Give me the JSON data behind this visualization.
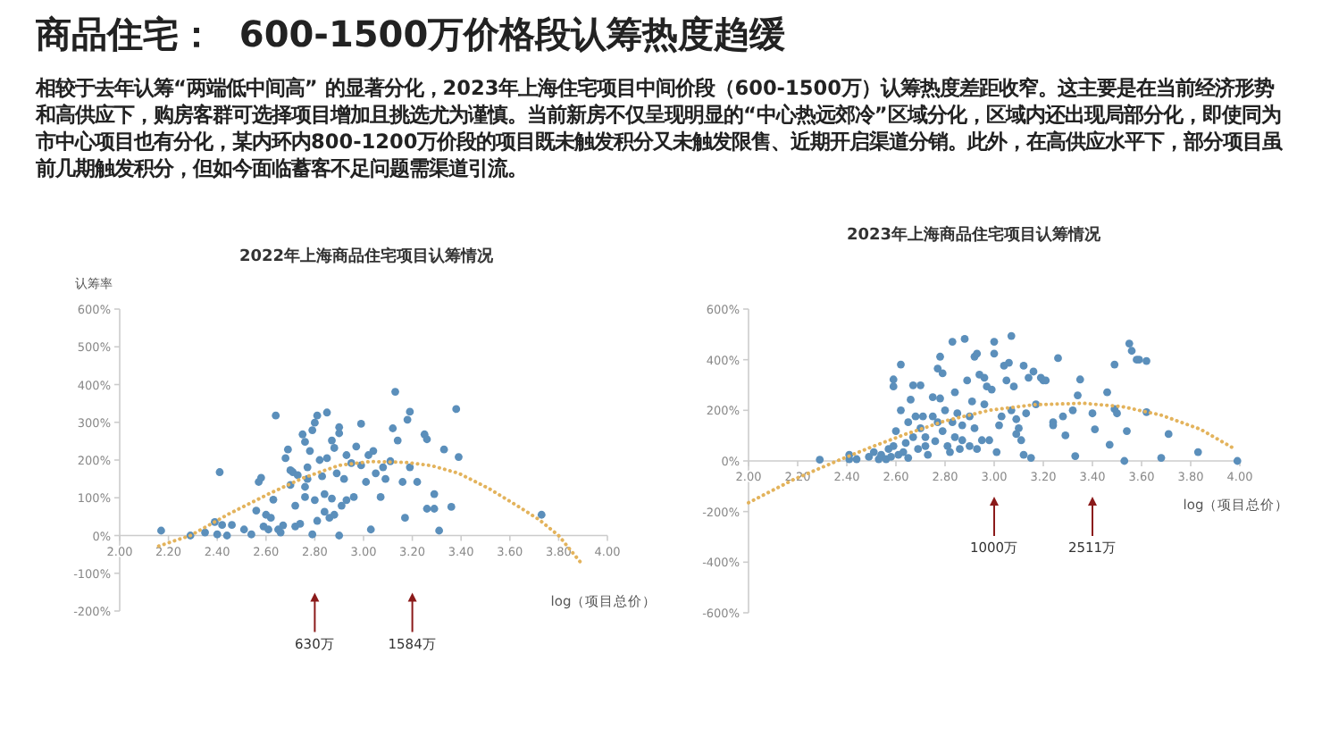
{
  "chart_data": [
    {
      "type": "other",
      "title": "商品住宅：  600-1500万价格段认筹热度趋缓",
      "subtitle": "相较于去年认筹“两端低中间高” 的显著分化，2023年上海住宅项目中间价段（600-1500万）认筹热度差距收窄。这主要是在当前经济形势和高供应下，购房客群可选择项目增加且挑选尤为谨慎。当前新房不仅呈现明显的“中心热远郊冷”区域分化，区域内还出现局部分化，即使同为市中心项目也有分化，某内环内800-1200万价段的项目既未触发积分又未触发限售、近期开启渠道分销。此外，在高供应水平下，部分项目虽前几期触发积分，但如今面临蓄客不足问题需渠道引流。"
    },
    {
      "type": "scatter",
      "title": "2022年上海商品住宅项目认筹情况",
      "ylabel": "认筹率",
      "xlabel": "log（项目总价）",
      "xlim": [
        2,
        4
      ],
      "xticks": [
        {
          "value": 2,
          "label": "2.00"
        },
        {
          "value": 2.2,
          "label": "2.20"
        },
        {
          "value": 2.4,
          "label": "2.40"
        },
        {
          "value": 2.6,
          "label": "2.60"
        },
        {
          "value": 2.8,
          "label": "2.80"
        },
        {
          "value": 3,
          "label": "3.00"
        },
        {
          "value": 3.2,
          "label": "3.20"
        },
        {
          "value": 3.4,
          "label": "3.40"
        },
        {
          "value": 3.6,
          "label": "3.60"
        },
        {
          "value": 3.8,
          "label": "3.80"
        },
        {
          "value": 4,
          "label": "4.00"
        }
      ],
      "ylim": [
        -200,
        600
      ],
      "yticks": [
        {
          "value": -200,
          "label": "-200%"
        },
        {
          "value": -100,
          "label": "-100%"
        },
        {
          "value": 0,
          "label": "0%"
        },
        {
          "value": 100,
          "label": "100%"
        },
        {
          "value": 200,
          "label": "200%"
        },
        {
          "value": 300,
          "label": "300%"
        },
        {
          "value": 400,
          "label": "400%"
        },
        {
          "value": 500,
          "label": "500%"
        },
        {
          "value": 600,
          "label": "600%"
        }
      ],
      "ref_lines": [
        {
          "axis": "x",
          "value": 2.8,
          "label": "630万",
          "color": "#8b1a1a"
        },
        {
          "axis": "x",
          "value": 3.2,
          "label": "1584万",
          "color": "#8b1a1a"
        }
      ],
      "series": [
        {
          "type": "scatter",
          "color": "#5b8fbb",
          "marker": "circle",
          "x": [
            2.17,
            2.29,
            2.35,
            2.39,
            2.41,
            2.4,
            2.42,
            2.44,
            2.46,
            2.51,
            2.54,
            2.56,
            2.57,
            2.58,
            2.59,
            2.6,
            2.61,
            2.62,
            2.63,
            2.64,
            2.65,
            2.66,
            2.67,
            2.68,
            2.69,
            2.7,
            2.7,
            2.71,
            2.72,
            2.72,
            2.73,
            2.74,
            2.75,
            2.76,
            2.76,
            2.76,
            2.77,
            2.77,
            2.78,
            2.79,
            2.79,
            2.8,
            2.8,
            2.81,
            2.81,
            2.82,
            2.83,
            2.84,
            2.84,
            2.85,
            2.85,
            2.86,
            2.87,
            2.87,
            2.88,
            2.88,
            2.89,
            2.9,
            2.9,
            2.91,
            2.9,
            2.92,
            2.93,
            2.93,
            2.95,
            2.96,
            2.97,
            2.99,
            2.99,
            3.01,
            3.02,
            3.03,
            3.04,
            3.05,
            3.07,
            3.08,
            3.09,
            3.11,
            3.12,
            3.13,
            3.14,
            3.16,
            3.17,
            3.18,
            3.19,
            3.19,
            3.22,
            3.25,
            3.26,
            3.26,
            3.29,
            3.29,
            3.31,
            3.33,
            3.36,
            3.38,
            3.39,
            3.73
          ],
          "values": [
            13,
            0,
            8,
            36,
            168,
            3,
            28,
            0,
            28,
            16,
            3,
            66,
            142,
            153,
            24,
            55,
            16,
            47,
            95,
            318,
            16,
            8,
            27,
            205,
            228,
            134,
            173,
            168,
            24,
            79,
            160,
            31,
            268,
            102,
            129,
            248,
            150,
            181,
            224,
            279,
            3,
            299,
            94,
            39,
            318,
            200,
            157,
            63,
            110,
            326,
            205,
            47,
            252,
            98,
            55,
            232,
            165,
            271,
            287,
            79,
            0,
            150,
            213,
            94,
            192,
            102,
            236,
            296,
            186,
            142,
            213,
            16,
            224,
            165,
            102,
            181,
            150,
            197,
            284,
            381,
            252,
            142,
            47,
            307,
            328,
            181,
            142,
            268,
            255,
            71,
            110,
            71,
            13,
            228,
            76,
            335,
            208,
            55
          ]
        },
        {
          "type": "line",
          "color": "#e3b35c",
          "line_style": "dotted",
          "marker": "none",
          "x": [
            2.16,
            2.29,
            2.45,
            2.61,
            2.75,
            2.9,
            3.03,
            3.17,
            3.28,
            3.39,
            3.51,
            3.63,
            3.72,
            3.8,
            3.89
          ],
          "values": [
            -28,
            0,
            58,
            110,
            152,
            186,
            196,
            194,
            185,
            165,
            126,
            79,
            42,
            0,
            -71
          ]
        }
      ]
    },
    {
      "type": "scatter",
      "title": "2023年上海商品住宅项目认筹情况",
      "xlabel": "log（项目总价）",
      "xlim": [
        2,
        4
      ],
      "xticks": [
        {
          "value": 2,
          "label": "2.00"
        },
        {
          "value": 2.2,
          "label": "2.20"
        },
        {
          "value": 2.4,
          "label": "2.40"
        },
        {
          "value": 2.6,
          "label": "2.60"
        },
        {
          "value": 2.8,
          "label": "2.80"
        },
        {
          "value": 3,
          "label": "3.00"
        },
        {
          "value": 3.2,
          "label": "3.20"
        },
        {
          "value": 3.4,
          "label": "3.40"
        },
        {
          "value": 3.6,
          "label": "3.60"
        },
        {
          "value": 3.8,
          "label": "3.80"
        },
        {
          "value": 4,
          "label": "4.00"
        }
      ],
      "ylim": [
        -600,
        600
      ],
      "yticks": [
        {
          "value": -600,
          "label": "-600%"
        },
        {
          "value": -400,
          "label": "-400%"
        },
        {
          "value": -200,
          "label": "-200%"
        },
        {
          "value": 0,
          "label": "0%"
        },
        {
          "value": 200,
          "label": "200%"
        },
        {
          "value": 400,
          "label": "400%"
        },
        {
          "value": 600,
          "label": "600%"
        }
      ],
      "ref_lines": [
        {
          "axis": "x",
          "value": 3,
          "label": "1000万",
          "color": "#8b1a1a"
        },
        {
          "axis": "x",
          "value": 3.4,
          "label": "2511万",
          "color": "#8b1a1a"
        }
      ],
      "series": [
        {
          "type": "scatter",
          "color": "#5b8fbb",
          "marker": "circle",
          "x": [
            2.29,
            2.41,
            2.41,
            2.44,
            2.49,
            2.51,
            2.53,
            2.54,
            2.56,
            2.57,
            2.58,
            2.59,
            2.59,
            2.59,
            2.6,
            2.61,
            2.62,
            2.62,
            2.63,
            2.64,
            2.65,
            2.65,
            2.66,
            2.67,
            2.67,
            2.68,
            2.69,
            2.7,
            2.7,
            2.71,
            2.72,
            2.72,
            2.73,
            2.75,
            2.75,
            2.76,
            2.77,
            2.77,
            2.78,
            2.78,
            2.79,
            2.79,
            2.8,
            2.81,
            2.82,
            2.83,
            2.83,
            2.84,
            2.84,
            2.85,
            2.86,
            2.87,
            2.87,
            2.88,
            2.89,
            2.9,
            2.9,
            2.91,
            2.92,
            2.92,
            2.93,
            2.93,
            2.94,
            2.95,
            2.96,
            2.96,
            2.97,
            2.98,
            2.99,
            3,
            3,
            3.01,
            3.02,
            3.03,
            3.04,
            3.05,
            3.06,
            3.07,
            3.07,
            3.08,
            3.09,
            3.09,
            3.1,
            3.11,
            3.12,
            3.12,
            3.13,
            3.14,
            3.15,
            3.16,
            3.17,
            3.19,
            3.2,
            3.21,
            3.24,
            3.24,
            3.26,
            3.28,
            3.29,
            3.32,
            3.33,
            3.35,
            3.34,
            3.4,
            3.41,
            3.46,
            3.47,
            3.49,
            3.5,
            3.49,
            3.53,
            3.54,
            3.55,
            3.56,
            3.58,
            3.59,
            3.62,
            3.62,
            3.68,
            3.71,
            3.83,
            3.99
          ],
          "values": [
            5,
            24,
            7,
            7,
            16,
            35,
            7,
            24,
            7,
            47,
            16,
            59,
            322,
            294,
            118,
            24,
            381,
            200,
            35,
            71,
            153,
            12,
            242,
            94,
            299,
            176,
            47,
            299,
            129,
            176,
            59,
            94,
            24,
            252,
            176,
            78,
            365,
            153,
            412,
            247,
            346,
            118,
            200,
            59,
            35,
            471,
            153,
            94,
            271,
            188,
            47,
            82,
            141,
            482,
            318,
            176,
            59,
            235,
            412,
            129,
            424,
            47,
            341,
            82,
            224,
            329,
            294,
            82,
            282,
            471,
            424,
            35,
            141,
            176,
            376,
            318,
            388,
            494,
            200,
            294,
            165,
            106,
            129,
            82,
            24,
            376,
            188,
            329,
            12,
            353,
            224,
            329,
            318,
            318,
            141,
            153,
            406,
            176,
            101,
            200,
            19,
            322,
            259,
            188,
            125,
            271,
            64,
            205,
            188,
            381,
            0,
            118,
            464,
            435,
            400,
            400,
            193,
            395,
            12,
            106,
            35,
            0
          ]
        },
        {
          "type": "line",
          "color": "#e3b35c",
          "line_style": "dotted",
          "marker": "none",
          "x": [
            2,
            2.18,
            2.36,
            2.5,
            2.64,
            2.8,
            2.98,
            3.16,
            3.36,
            3.52,
            3.68,
            3.84,
            3.98
          ],
          "values": [
            -165,
            -75,
            0,
            55,
            106,
            158,
            200,
            222,
            228,
            215,
            181,
            125,
            47
          ]
        }
      ]
    }
  ]
}
